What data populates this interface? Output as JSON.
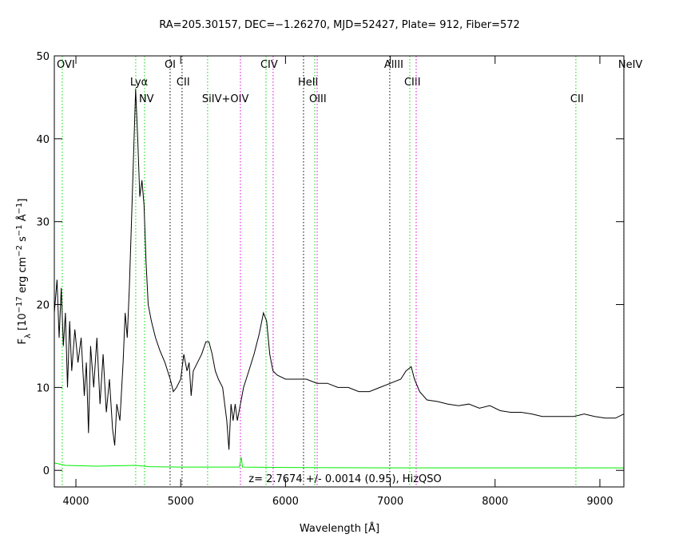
{
  "chart_data": {
    "type": "line",
    "title": "RA=205.30157, DEC=−1.26270, MJD=52427, Plate= 912, Fiber=572",
    "x_label": "Wavelength [Å]",
    "y_label_parts": [
      "F",
      "λ",
      " [10",
      "−17",
      " erg cm",
      "−2",
      " s",
      "−1",
      " Å",
      "−1",
      "]"
    ],
    "annotation": "z= 2.7674 +/- 0.0014 (0.95), HizQSO",
    "xlim": [
      3794,
      9229
    ],
    "ylim": [
      -2,
      50
    ],
    "xticks": [
      4000,
      5000,
      6000,
      7000,
      8000,
      9000
    ],
    "yticks": [
      0,
      10,
      20,
      30,
      40,
      50
    ],
    "series": [
      {
        "color": "#000000",
        "x": [
          3794,
          3820,
          3840,
          3860,
          3880,
          3900,
          3920,
          3940,
          3960,
          3990,
          4020,
          4050,
          4080,
          4100,
          4120,
          4140,
          4170,
          4200,
          4230,
          4260,
          4290,
          4320,
          4350,
          4370,
          4390,
          4420,
          4450,
          4470,
          4490,
          4510,
          4530,
          4550,
          4570,
          4590,
          4610,
          4630,
          4650,
          4670,
          4690,
          4720,
          4760,
          4800,
          4850,
          4900,
          4930,
          4960,
          5000,
          5030,
          5060,
          5080,
          5100,
          5120,
          5160,
          5200,
          5240,
          5270,
          5300,
          5330,
          5360,
          5400,
          5420,
          5440,
          5460,
          5480,
          5500,
          5520,
          5540,
          5570,
          5600,
          5650,
          5700,
          5750,
          5790,
          5820,
          5850,
          5880,
          5920,
          6000,
          6100,
          6200,
          6300,
          6400,
          6500,
          6600,
          6700,
          6800,
          6900,
          7000,
          7100,
          7150,
          7200,
          7230,
          7280,
          7350,
          7450,
          7550,
          7650,
          7750,
          7850,
          7950,
          8050,
          8150,
          8250,
          8350,
          8450,
          8550,
          8650,
          8750,
          8850,
          8950,
          9050,
          9150,
          9229
        ],
        "values": [
          19,
          23,
          16,
          22,
          15,
          19,
          10,
          18,
          12,
          17,
          13,
          16,
          9,
          13,
          4.5,
          15,
          10,
          16,
          8,
          14,
          7,
          11,
          5,
          3,
          8,
          6,
          13,
          19,
          16,
          22,
          30,
          38,
          46,
          40,
          33,
          35,
          32,
          25,
          20,
          18,
          16,
          14.5,
          13,
          11,
          9.5,
          10,
          11,
          14,
          12,
          13,
          9,
          12,
          13,
          14,
          15.5,
          15.5,
          14,
          12,
          11,
          10,
          8,
          6,
          2.5,
          8,
          6,
          8,
          6,
          8,
          10,
          12,
          14,
          16.5,
          19,
          18,
          14,
          12,
          11.5,
          11,
          11,
          11,
          10.5,
          10.5,
          10,
          10,
          9.5,
          9.5,
          10,
          10.5,
          11,
          12,
          12.5,
          11,
          9.5,
          8.5,
          8.3,
          8,
          7.8,
          8,
          7.5,
          7.8,
          7.2,
          7,
          7,
          6.8,
          6.5,
          6.5,
          6.5,
          6.5,
          6.8,
          6.5,
          6.3,
          6.3,
          6.8
        ]
      },
      {
        "color": "#00ee00",
        "x": [
          3794,
          3900,
          4200,
          4570,
          4700,
          5000,
          5560,
          5577,
          5590,
          6000,
          7000,
          8000,
          9229
        ],
        "values": [
          0.9,
          0.6,
          0.5,
          0.6,
          0.45,
          0.4,
          0.4,
          1.6,
          0.4,
          0.35,
          0.3,
          0.3,
          0.3
        ]
      }
    ],
    "lines": [
      {
        "wavelength": 3870,
        "label": "OVI",
        "color": "#00dd00"
      },
      {
        "wavelength": 4571,
        "label": "Lyα",
        "color": "#00dd00"
      },
      {
        "wavelength": 4655,
        "label": "NV",
        "color": "#00dd00"
      },
      {
        "wavelength": 4899,
        "label": "OI",
        "color": "#000000"
      },
      {
        "wavelength": 5013,
        "label": "CII",
        "color": "#000000"
      },
      {
        "wavelength": 5257,
        "label": "SiIV+OIV",
        "color": "#00dd00"
      },
      {
        "wavelength": 5570,
        "label": null,
        "color": "#dd00dd"
      },
      {
        "wavelength": 5814,
        "label": "CIV",
        "color": "#00dd00"
      },
      {
        "wavelength": 5882,
        "label": null,
        "color": "#dd00dd"
      },
      {
        "wavelength": 6172,
        "label": "HeII",
        "color": "#000000"
      },
      {
        "wavelength": 6279,
        "label": "OIII",
        "color": "#00dd00"
      },
      {
        "wavelength": 6302,
        "label": null,
        "color": "#dd00dd"
      },
      {
        "wavelength": 6995,
        "label": "AlIII",
        "color": "#000000"
      },
      {
        "wavelength": 7186,
        "label": "CIII",
        "color": "#00dd00"
      },
      {
        "wavelength": 7247,
        "label": null,
        "color": "#dd00dd"
      },
      {
        "wavelength": 8771,
        "label": "CII",
        "color": "#00dd00"
      },
      {
        "wavelength": 9228,
        "label": "NeIV",
        "color": "#00dd00"
      }
    ]
  }
}
